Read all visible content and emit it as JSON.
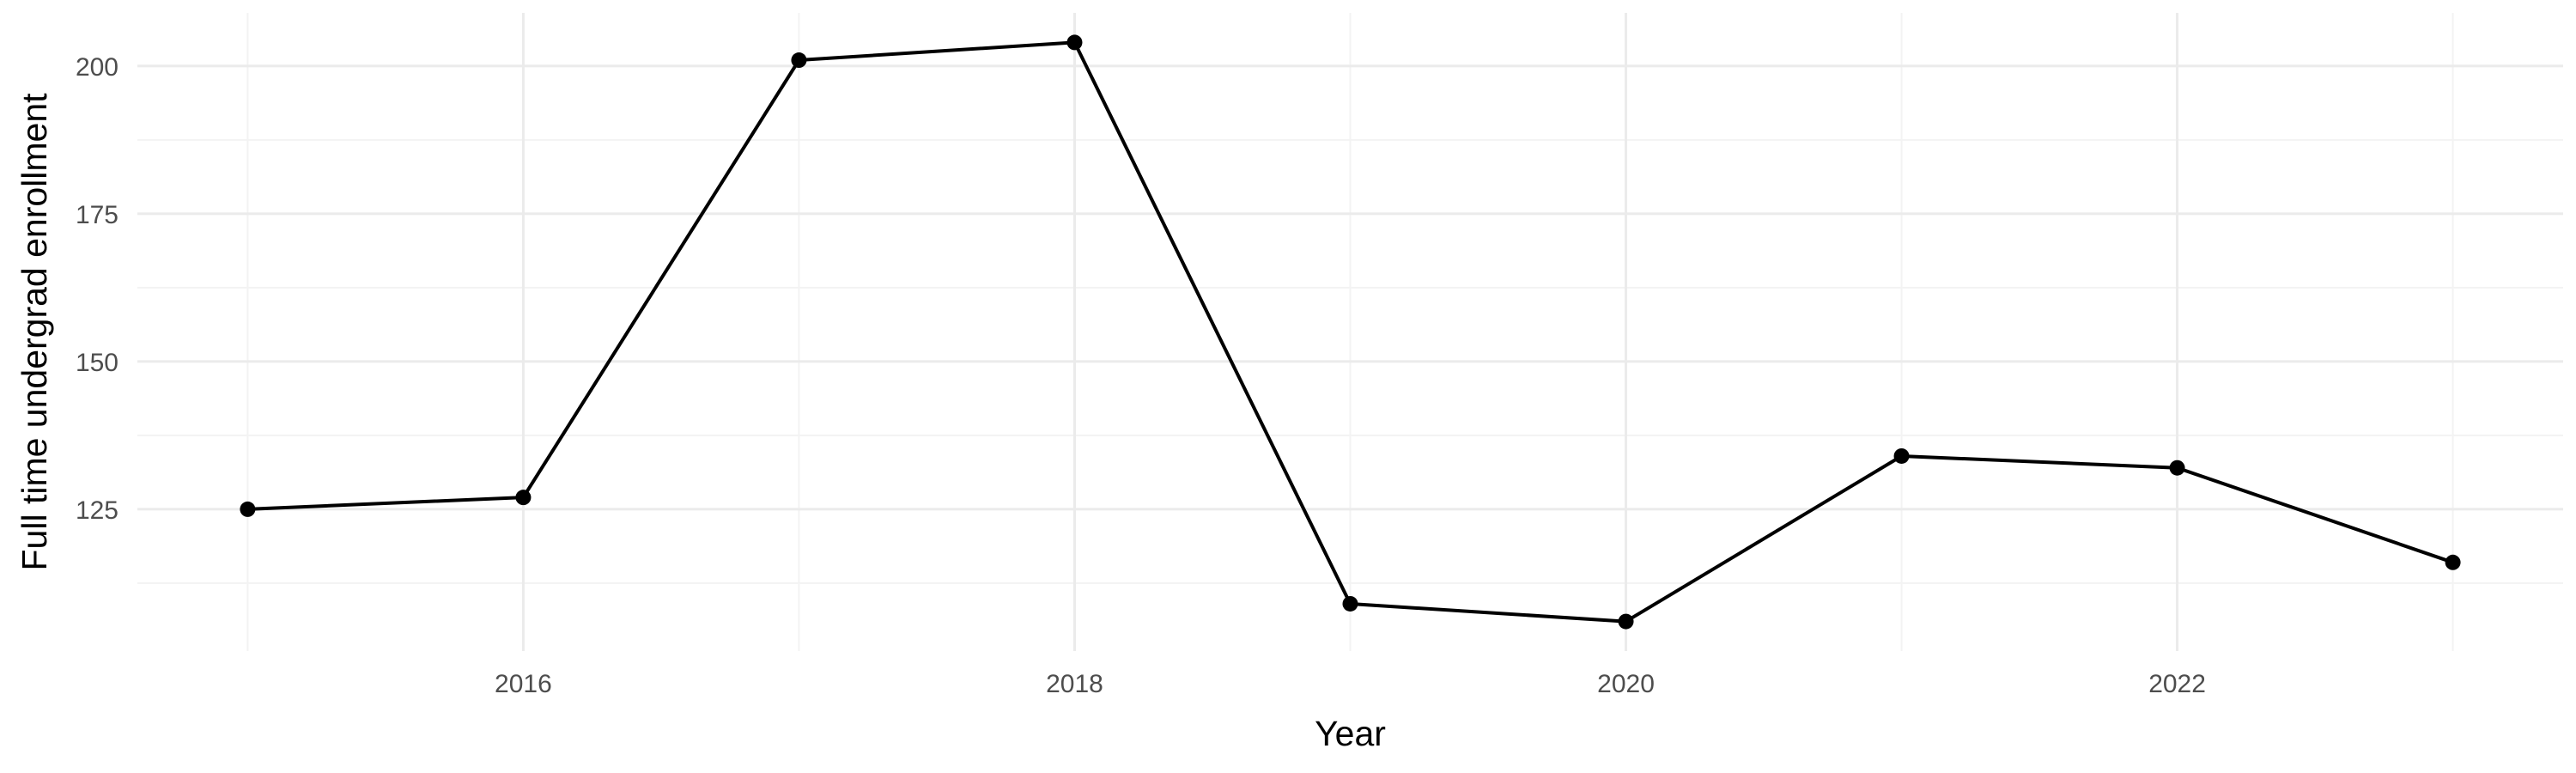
{
  "chart_data": {
    "type": "line",
    "title": "",
    "xlabel": "Year",
    "ylabel": "Full time undergrad enrollment",
    "x": [
      2015,
      2016,
      2017,
      2018,
      2019,
      2020,
      2021,
      2022,
      2023
    ],
    "series": [
      {
        "values": [
          125,
          127,
          201,
          204,
          109,
          106,
          134,
          132,
          116
        ]
      }
    ],
    "xlim": [
      2014.6,
      2023.4
    ],
    "ylim": [
      101.0,
      209.0
    ],
    "x_ticks": [
      2016,
      2018,
      2020,
      2022
    ],
    "y_ticks": [
      125,
      150,
      175,
      200
    ],
    "x_minor_ticks": [
      2015,
      2017,
      2019,
      2021,
      2023
    ],
    "y_minor_ticks": [
      112.5,
      137.5,
      162.5,
      187.5
    ],
    "grid": true,
    "legend": "none",
    "colors": {
      "line": "#000000",
      "grid_major": "#ebebeb",
      "grid_minor": "#f3f3f3",
      "tick_text": "#4d4d4d",
      "background": "#ffffff"
    }
  }
}
